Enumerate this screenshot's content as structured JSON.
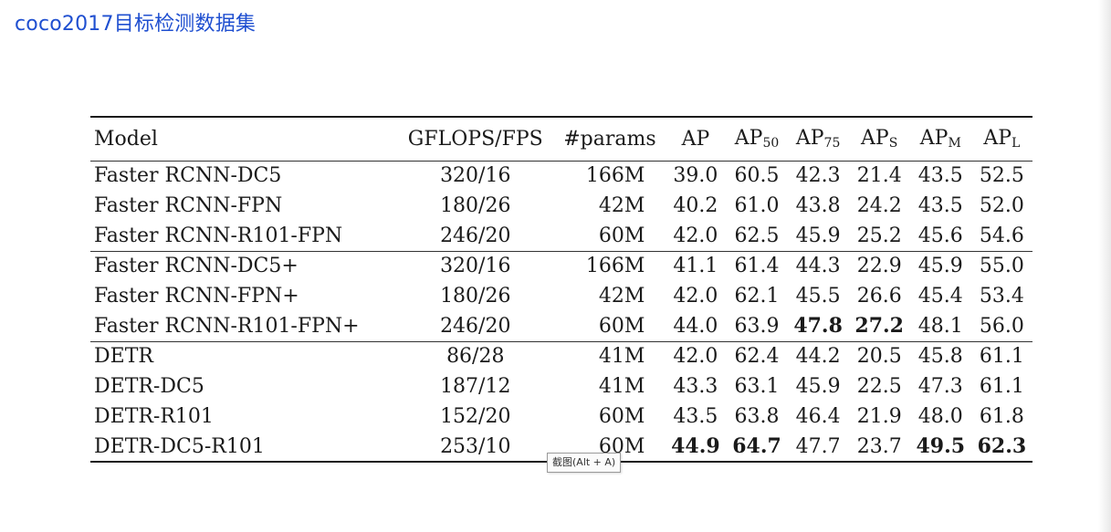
{
  "slide": {
    "title": "coco2017目标检测数据集"
  },
  "table": {
    "headers": {
      "model": "Model",
      "gflops_fps": "GFLOPS/FPS",
      "params": "#params",
      "ap": "AP",
      "ap50": {
        "base": "AP",
        "sub": "50"
      },
      "ap75": {
        "base": "AP",
        "sub": "75"
      },
      "aps": {
        "base": "AP",
        "sub": "S"
      },
      "apm": {
        "base": "AP",
        "sub": "M"
      },
      "apl": {
        "base": "AP",
        "sub": "L"
      }
    },
    "rows": [
      {
        "model": "Faster RCNN-DC5",
        "gflops_fps": "320/16",
        "params": "166M",
        "ap": "39.0",
        "ap50": "60.5",
        "ap75": "42.3",
        "aps": "21.4",
        "apm": "43.5",
        "apl": "52.5"
      },
      {
        "model": "Faster RCNN-FPN",
        "gflops_fps": "180/26",
        "params": "42M",
        "ap": "40.2",
        "ap50": "61.0",
        "ap75": "43.8",
        "aps": "24.2",
        "apm": "43.5",
        "apl": "52.0"
      },
      {
        "model": "Faster RCNN-R101-FPN",
        "gflops_fps": "246/20",
        "params": "60M",
        "ap": "42.0",
        "ap50": "62.5",
        "ap75": "45.9",
        "aps": "25.2",
        "apm": "45.6",
        "apl": "54.6"
      },
      {
        "model": "Faster RCNN-DC5+",
        "gflops_fps": "320/16",
        "params": "166M",
        "ap": "41.1",
        "ap50": "61.4",
        "ap75": "44.3",
        "aps": "22.9",
        "apm": "45.9",
        "apl": "55.0"
      },
      {
        "model": "Faster RCNN-FPN+",
        "gflops_fps": "180/26",
        "params": "42M",
        "ap": "42.0",
        "ap50": "62.1",
        "ap75": "45.5",
        "aps": "26.6",
        "apm": "45.4",
        "apl": "53.4"
      },
      {
        "model": "Faster RCNN-R101-FPN+",
        "gflops_fps": "246/20",
        "params": "60M",
        "ap": "44.0",
        "ap50": "63.9",
        "ap75": "47.8",
        "aps": "27.2",
        "apm": "48.1",
        "apl": "56.0"
      },
      {
        "model": "DETR",
        "gflops_fps": "86/28",
        "params": "41M",
        "ap": "42.0",
        "ap50": "62.4",
        "ap75": "44.2",
        "aps": "20.5",
        "apm": "45.8",
        "apl": "61.1"
      },
      {
        "model": "DETR-DC5",
        "gflops_fps": "187/12",
        "params": "41M",
        "ap": "43.3",
        "ap50": "63.1",
        "ap75": "45.9",
        "aps": "22.5",
        "apm": "47.3",
        "apl": "61.1"
      },
      {
        "model": "DETR-R101",
        "gflops_fps": "152/20",
        "params": "60M",
        "ap": "43.5",
        "ap50": "63.8",
        "ap75": "46.4",
        "aps": "21.9",
        "apm": "48.0",
        "apl": "61.8"
      },
      {
        "model": "DETR-DC5-R101",
        "gflops_fps": "253/10",
        "params": "60M",
        "ap": "44.9",
        "ap50": "64.7",
        "ap75": "47.7",
        "aps": "23.7",
        "apm": "49.5",
        "apl": "62.3"
      }
    ]
  },
  "tooltip": {
    "text": "截图(Alt + A)"
  }
}
